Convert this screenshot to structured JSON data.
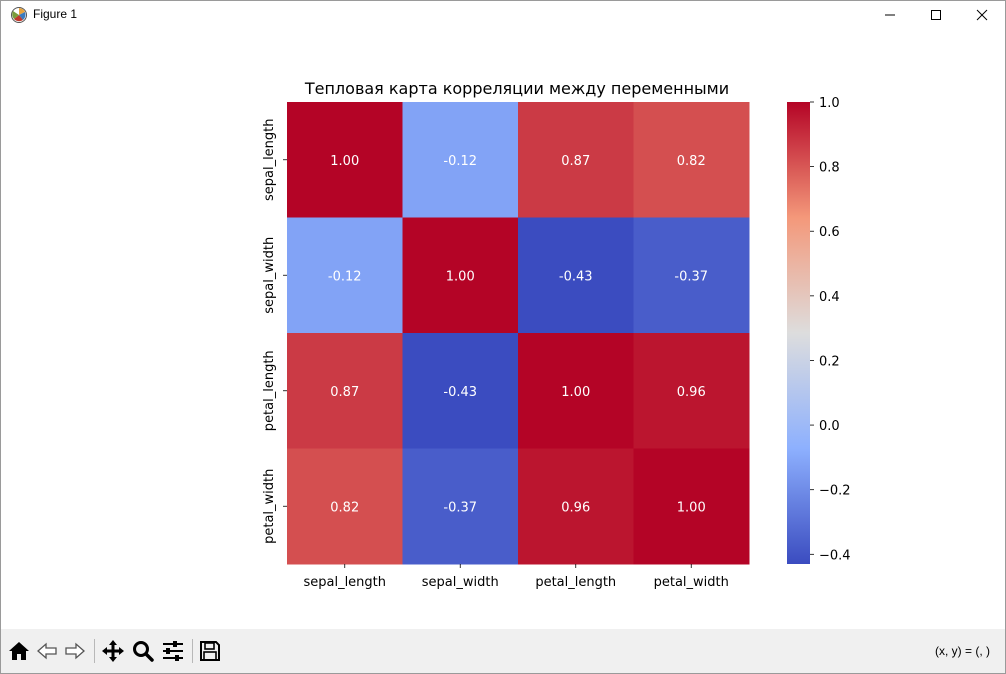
{
  "window": {
    "title": "Figure 1",
    "controls": [
      "minimize",
      "maximize",
      "close"
    ]
  },
  "toolbar": {
    "buttons": [
      {
        "name": "home",
        "icon": "home-icon"
      },
      {
        "name": "back",
        "icon": "arrow-left-icon"
      },
      {
        "name": "forward",
        "icon": "arrow-right-icon"
      },
      {
        "name": "pan",
        "icon": "move-icon"
      },
      {
        "name": "zoom",
        "icon": "magnifier-icon"
      },
      {
        "name": "configure-subplots",
        "icon": "sliders-icon"
      },
      {
        "name": "save",
        "icon": "floppy-disk-icon"
      }
    ],
    "coordinates": "(x, y) = (, )"
  },
  "chart_data": {
    "type": "heatmap",
    "title": "Тепловая карта корреляции между переменными",
    "x_categories": [
      "sepal_length",
      "sepal_width",
      "petal_length",
      "petal_width"
    ],
    "y_categories": [
      "sepal_length",
      "sepal_width",
      "petal_length",
      "petal_width"
    ],
    "values": [
      [
        1.0,
        -0.12,
        0.87,
        0.82
      ],
      [
        -0.12,
        1.0,
        -0.43,
        -0.37
      ],
      [
        0.87,
        -0.43,
        1.0,
        0.96
      ],
      [
        0.82,
        -0.37,
        0.96,
        1.0
      ]
    ],
    "annotation_format": "0.00",
    "colormap": "coolwarm",
    "colorbar": {
      "range": [
        -0.43,
        1.0
      ],
      "ticks": [
        1.0,
        0.8,
        0.6,
        0.4,
        0.2,
        0.0,
        -0.2,
        -0.4
      ],
      "tick_labels": [
        "1.0",
        "0.8",
        "0.6",
        "0.4",
        "0.2",
        "0.0",
        "−0.2",
        "−0.4"
      ]
    },
    "colors": {
      "low": "#3b4cc0",
      "mid": "#dddddd",
      "high": "#b40426"
    }
  }
}
